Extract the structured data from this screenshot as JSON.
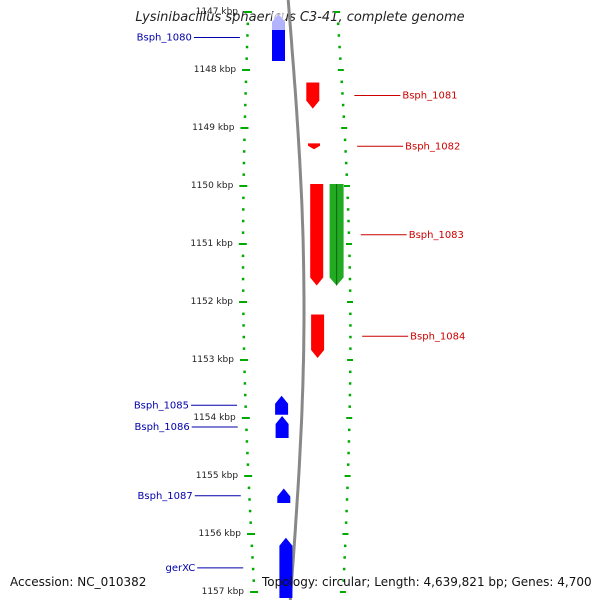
{
  "title": "Lysinibacillus sphaericus C3-41, complete genome",
  "accession_text": "Accession: NC_010382",
  "topology_text": "Topology: circular; Length: 4,639,821 bp; Genes: 4,700",
  "unit": "kbp",
  "range_kbp": [
    1147,
    1157
  ],
  "ticks_kbp": [
    1147,
    1148,
    1149,
    1150,
    1151,
    1152,
    1153,
    1154,
    1155,
    1156,
    1157
  ],
  "colors": {
    "backbone": "#888888",
    "left_ruler": "#00aa00",
    "right_ruler": "#00aa00",
    "tick_label": "#222222",
    "plus_strand_gene": "#ff0000",
    "minus_strand_gene": "#0000ff",
    "rna": "#22aa22",
    "plus_label": "#cc0000",
    "minus_label": "#0000aa"
  },
  "features": [
    {
      "label": "Bsph_1080",
      "strand": "minus",
      "start_kbp": 1146.8,
      "end_kbp": 1147.88,
      "faded_top": true
    },
    {
      "label": "Bsph_1081",
      "strand": "plus",
      "start_kbp": 1148.25,
      "end_kbp": 1148.7
    },
    {
      "label": "Bsph_1082",
      "strand": "plus",
      "start_kbp": 1149.3,
      "end_kbp": 1149.4
    },
    {
      "label": "Bsph_1083",
      "strand": "plus",
      "start_kbp": 1150.0,
      "end_kbp": 1151.75
    },
    {
      "label": "",
      "strand": "rna",
      "start_kbp": 1150.0,
      "end_kbp": 1151.75
    },
    {
      "label": "Bsph_1084",
      "strand": "plus",
      "start_kbp": 1152.25,
      "end_kbp": 1153.0
    },
    {
      "label": "Bsph_1085",
      "strand": "minus",
      "start_kbp": 1153.65,
      "end_kbp": 1153.98
    },
    {
      "label": "Bsph_1086",
      "strand": "minus",
      "start_kbp": 1154.0,
      "end_kbp": 1154.38
    },
    {
      "label": "Bsph_1087",
      "strand": "minus",
      "start_kbp": 1155.25,
      "end_kbp": 1155.5
    },
    {
      "label": "gerXC",
      "strand": "minus",
      "start_kbp": 1156.1,
      "end_kbp": 1157.2
    }
  ]
}
